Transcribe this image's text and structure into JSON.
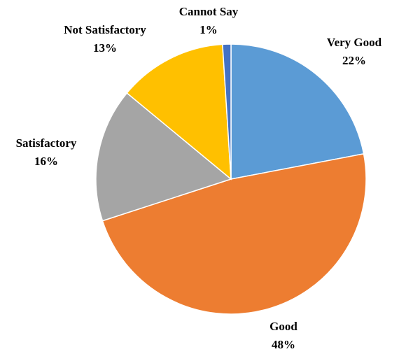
{
  "chart_data": {
    "type": "pie",
    "start_angle_deg": 0,
    "direction": "clockwise",
    "slices": [
      {
        "label": "Very Good",
        "value": 22,
        "display_value": "22%",
        "color": "#5B9BD5"
      },
      {
        "label": "Good",
        "value": 48,
        "display_value": "48%",
        "color": "#ED7D31"
      },
      {
        "label": "Satisfactory",
        "value": 16,
        "display_value": "16%",
        "color": "#A5A5A5"
      },
      {
        "label": "Not Satisfactory",
        "value": 13,
        "display_value": "13%",
        "color": "#FFC000"
      },
      {
        "label": "Cannot Say",
        "value": 1,
        "display_value": "1%",
        "color": "#4472C4"
      }
    ]
  }
}
